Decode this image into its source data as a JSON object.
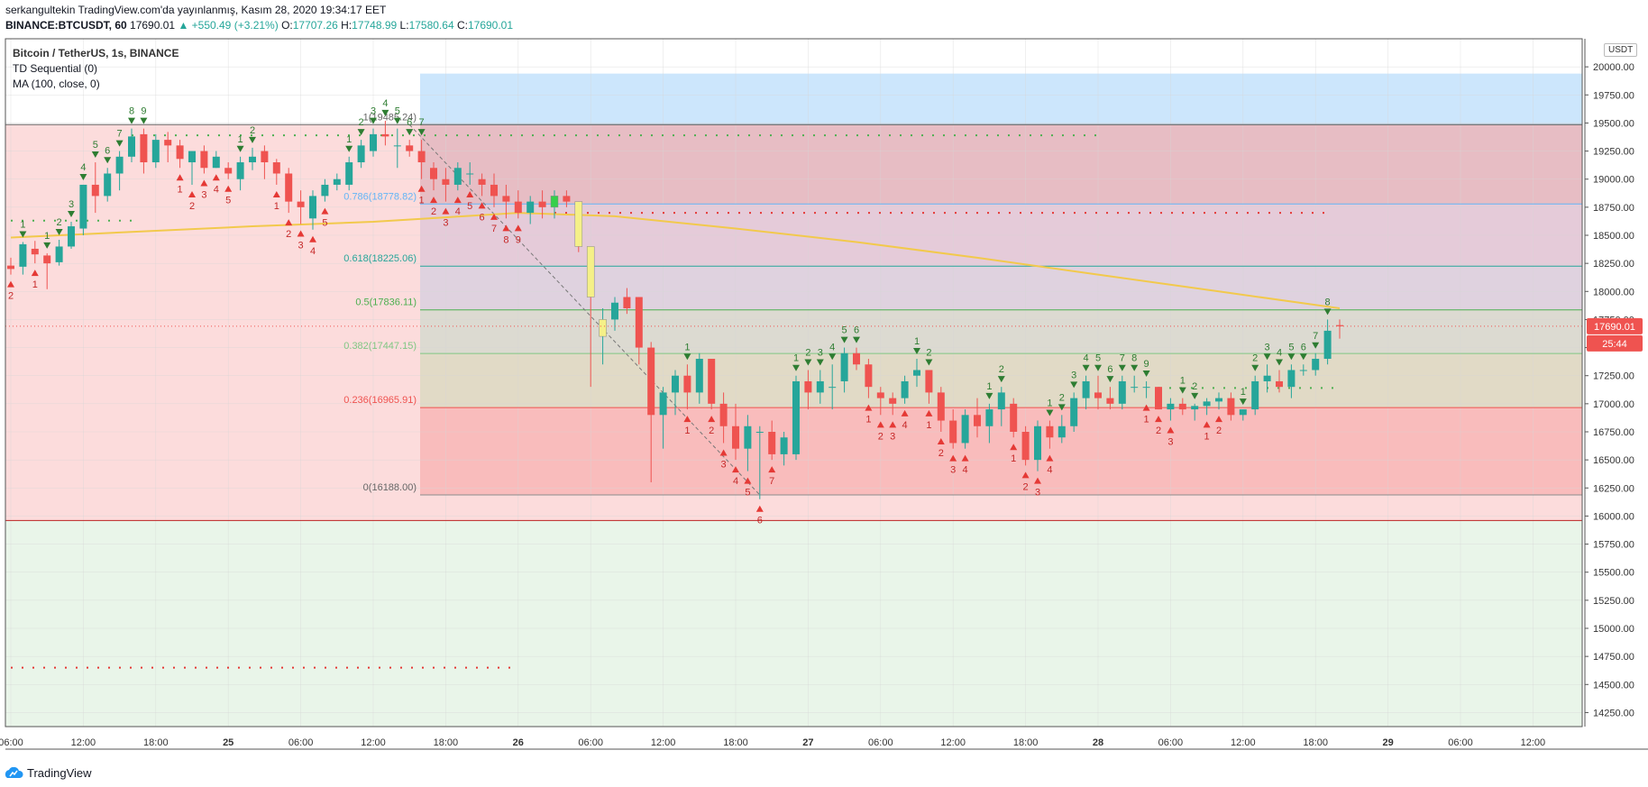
{
  "header": {
    "line1": "serkangultekin TradingView.com'da yayınlanmış, Kasım 28, 2020 19:34:17 EET",
    "symbol": "BINANCE:BTCUSDT, 60",
    "last": "17690.01",
    "change": "▲ +550.49 (+3.21%)",
    "open_label": "O:",
    "open": "17707.26",
    "high_label": "H:",
    "high": "17748.99",
    "low_label": "L:",
    "low": "17580.64",
    "close_label": "C:",
    "close": "17690.01"
  },
  "legend": {
    "title": "Bitcoin / TetherUS, 1s, BINANCE",
    "td": "TD Sequential (0)",
    "ma": "MA (100, close, 0)"
  },
  "currency_button": "USDT",
  "footer": {
    "brand": "TradingView"
  },
  "colors": {
    "up": "#26a69a",
    "down": "#ef5350",
    "ma": "#f2c94c",
    "band_blue": "#bbdefb",
    "zone_red": "#fcdcdc",
    "zone_green": "#e9f5e9",
    "price_tag": "#ef5350",
    "fib_red": "#ef5350"
  },
  "chart_data": {
    "type": "candlestick",
    "title": "Bitcoin / TetherUS, 1s, BINANCE",
    "ylim": [
      14125,
      20250
    ],
    "y_ticks": [
      14250,
      14500,
      14750,
      15000,
      15250,
      15500,
      15750,
      16000,
      16250,
      16500,
      16750,
      17000,
      17250,
      17500,
      17750,
      18000,
      18250,
      18500,
      18750,
      19000,
      19250,
      19500,
      19750,
      20000
    ],
    "y_tick_labels": [
      "14250.00",
      "14500.00",
      "14750.00",
      "15000.00",
      "15250.00",
      "15500.00",
      "15750.00",
      "16000.00",
      "16250.00",
      "16500.00",
      "16750.00",
      "17000.00",
      "17250.00",
      "17500.00",
      "17750.00",
      "18000.00",
      "18250.00",
      "18500.00",
      "18750.00",
      "19000.00",
      "19250.00",
      "19500.00",
      "19750.00",
      "20000.00"
    ],
    "x_ticks": [
      {
        "i": 0,
        "label": "06:00"
      },
      {
        "i": 6,
        "label": "12:00"
      },
      {
        "i": 12,
        "label": "18:00"
      },
      {
        "i": 18,
        "label": "25"
      },
      {
        "i": 24,
        "label": "06:00"
      },
      {
        "i": 30,
        "label": "12:00"
      },
      {
        "i": 36,
        "label": "18:00"
      },
      {
        "i": 42,
        "label": "26"
      },
      {
        "i": 48,
        "label": "06:00"
      },
      {
        "i": 54,
        "label": "12:00"
      },
      {
        "i": 60,
        "label": "18:00"
      },
      {
        "i": 66,
        "label": "27"
      },
      {
        "i": 72,
        "label": "06:00"
      },
      {
        "i": 78,
        "label": "12:00"
      },
      {
        "i": 84,
        "label": "18:00"
      },
      {
        "i": 90,
        "label": "28"
      },
      {
        "i": 96,
        "label": "06:00"
      },
      {
        "i": 102,
        "label": "12:00"
      },
      {
        "i": 108,
        "label": "18:00"
      },
      {
        "i": 114,
        "label": "29"
      },
      {
        "i": 120,
        "label": "06:00"
      },
      {
        "i": 126,
        "label": "12:00"
      }
    ],
    "candles": [
      [
        18230,
        18300,
        18150,
        18200
      ],
      [
        18220,
        18440,
        18150,
        18420
      ],
      [
        18380,
        18450,
        18250,
        18330
      ],
      [
        18320,
        18340,
        18020,
        18250
      ],
      [
        18260,
        18460,
        18230,
        18400
      ],
      [
        18400,
        18620,
        18380,
        18580
      ],
      [
        18560,
        18950,
        18500,
        18950
      ],
      [
        18950,
        19150,
        18700,
        18850
      ],
      [
        18850,
        19100,
        18800,
        19050
      ],
      [
        19050,
        19250,
        18900,
        19200
      ],
      [
        19200,
        19450,
        19150,
        19380
      ],
      [
        19400,
        19450,
        19050,
        19150
      ],
      [
        19150,
        19400,
        19100,
        19350
      ],
      [
        19350,
        19420,
        19150,
        19300
      ],
      [
        19300,
        19350,
        19100,
        19180
      ],
      [
        19150,
        19220,
        18950,
        19250
      ],
      [
        19250,
        19300,
        19050,
        19100
      ],
      [
        19100,
        19250,
        19100,
        19200
      ],
      [
        19100,
        19150,
        19000,
        19050
      ],
      [
        19000,
        19200,
        18900,
        19150
      ],
      [
        19150,
        19280,
        19080,
        19200
      ],
      [
        19250,
        19300,
        19000,
        19150
      ],
      [
        19150,
        19180,
        18950,
        19050
      ],
      [
        19050,
        19100,
        18700,
        18800
      ],
      [
        18800,
        18900,
        18600,
        18750
      ],
      [
        18650,
        18900,
        18550,
        18850
      ],
      [
        18850,
        19000,
        18800,
        18950
      ],
      [
        18950,
        19050,
        18900,
        19000
      ],
      [
        18950,
        19200,
        18900,
        19150
      ],
      [
        19150,
        19350,
        19100,
        19300
      ],
      [
        19250,
        19450,
        19200,
        19400
      ],
      [
        19400,
        19520,
        19300,
        19380
      ],
      [
        19300,
        19450,
        19100,
        19300
      ],
      [
        19300,
        19350,
        19200,
        19250
      ],
      [
        19250,
        19350,
        19000,
        19150
      ],
      [
        19100,
        19150,
        18900,
        19000
      ],
      [
        19000,
        19100,
        18800,
        18950
      ],
      [
        18950,
        19150,
        18900,
        19100
      ],
      [
        19050,
        19150,
        18950,
        19050
      ],
      [
        19000,
        19050,
        18850,
        18950
      ],
      [
        18950,
        19050,
        18750,
        18850
      ],
      [
        18850,
        18950,
        18650,
        18800
      ],
      [
        18800,
        18900,
        18650,
        18700
      ],
      [
        18700,
        18850,
        18600,
        18800
      ],
      [
        18800,
        18900,
        18650,
        18750
      ],
      [
        18750,
        18900,
        18650,
        18850
      ],
      [
        18850,
        18900,
        18750,
        18800
      ],
      [
        18800,
        18800,
        18350,
        18400
      ],
      [
        18400,
        18400,
        17150,
        17950
      ],
      [
        17600,
        17850,
        17350,
        17750
      ],
      [
        17750,
        17950,
        17650,
        17900
      ],
      [
        17950,
        18030,
        17800,
        17850
      ],
      [
        17950,
        17950,
        17350,
        17500
      ],
      [
        17500,
        17550,
        16300,
        16900
      ],
      [
        16900,
        17150,
        16600,
        17100
      ],
      [
        17100,
        17300,
        16900,
        17250
      ],
      [
        17250,
        17350,
        16950,
        17100
      ],
      [
        17100,
        17450,
        17000,
        17400
      ],
      [
        17400,
        17400,
        16950,
        17000
      ],
      [
        17000,
        17100,
        16650,
        16800
      ],
      [
        16800,
        17000,
        16500,
        16600
      ],
      [
        16600,
        16900,
        16400,
        16800
      ],
      [
        16750,
        16800,
        16150,
        16750
      ],
      [
        16750,
        16850,
        16500,
        16550
      ],
      [
        16550,
        16750,
        16450,
        16700
      ],
      [
        16550,
        17250,
        16500,
        17200
      ],
      [
        17200,
        17300,
        16950,
        17100
      ],
      [
        17100,
        17300,
        17000,
        17200
      ],
      [
        17150,
        17350,
        16950,
        17150
      ],
      [
        17200,
        17500,
        17100,
        17450
      ],
      [
        17450,
        17500,
        17300,
        17350
      ],
      [
        17350,
        17400,
        17050,
        17150
      ],
      [
        17100,
        17150,
        16900,
        17050
      ],
      [
        17050,
        17100,
        16900,
        17000
      ],
      [
        17050,
        17250,
        17000,
        17200
      ],
      [
        17250,
        17400,
        17150,
        17300
      ],
      [
        17300,
        17300,
        17000,
        17100
      ],
      [
        17100,
        17150,
        16750,
        16850
      ],
      [
        16850,
        16950,
        16600,
        16650
      ],
      [
        16650,
        16950,
        16600,
        16900
      ],
      [
        16900,
        17050,
        16700,
        16800
      ],
      [
        16800,
        17000,
        16650,
        16950
      ],
      [
        16950,
        17150,
        16800,
        17100
      ],
      [
        17000,
        17050,
        16700,
        16750
      ],
      [
        16750,
        16800,
        16450,
        16500
      ],
      [
        16500,
        16850,
        16400,
        16800
      ],
      [
        16800,
        16850,
        16600,
        16700
      ],
      [
        16700,
        16900,
        16650,
        16800
      ],
      [
        16800,
        17100,
        16750,
        17050
      ],
      [
        17050,
        17250,
        16950,
        17200
      ],
      [
        17100,
        17250,
        16950,
        17050
      ],
      [
        17050,
        17150,
        16950,
        17000
      ],
      [
        17000,
        17250,
        16950,
        17200
      ],
      [
        17150,
        17250,
        17100,
        17150
      ],
      [
        17150,
        17200,
        17050,
        17150
      ],
      [
        17150,
        17150,
        16950,
        16950
      ],
      [
        16950,
        17050,
        16850,
        17000
      ],
      [
        17000,
        17050,
        16900,
        16950
      ],
      [
        16950,
        17000,
        16850,
        16980
      ],
      [
        16980,
        17050,
        16900,
        17020
      ],
      [
        17020,
        17100,
        16950,
        17050
      ],
      [
        17050,
        17100,
        16850,
        16900
      ],
      [
        16900,
        16950,
        16850,
        16950
      ],
      [
        16950,
        17250,
        16900,
        17200
      ],
      [
        17200,
        17350,
        17100,
        17250
      ],
      [
        17200,
        17300,
        17100,
        17150
      ],
      [
        17150,
        17350,
        17050,
        17300
      ],
      [
        17300,
        17350,
        17250,
        17300
      ],
      [
        17300,
        17450,
        17250,
        17400
      ],
      [
        17400,
        17750,
        17350,
        17650
      ],
      [
        17700,
        17750,
        17580,
        17690
      ]
    ],
    "candle_overrides": {
      "45": "#35d04a",
      "47": "#f5f088",
      "48": "#f5f088",
      "49": "#f5f088"
    },
    "ma100": [
      [
        0,
        18480
      ],
      [
        10,
        18530
      ],
      [
        20,
        18580
      ],
      [
        30,
        18620
      ],
      [
        36,
        18660
      ],
      [
        42,
        18700
      ],
      [
        50,
        18670
      ],
      [
        60,
        18560
      ],
      [
        70,
        18440
      ],
      [
        80,
        18300
      ],
      [
        90,
        18150
      ],
      [
        100,
        18000
      ],
      [
        108,
        17880
      ],
      [
        110,
        17850
      ]
    ],
    "fib_levels": [
      {
        "level": "1",
        "price": 19485.24,
        "label": "1(19485.24)"
      },
      {
        "level": "0.786",
        "price": 18778.82,
        "label": "0.786(18778.82)"
      },
      {
        "level": "0.618",
        "price": 18225.06,
        "label": "0.618(18225.06)"
      },
      {
        "level": "0.5",
        "price": 17836.11,
        "label": "0.5(17836.11)"
      },
      {
        "level": "0.382",
        "price": 17447.15,
        "label": "0.382(17447.15)"
      },
      {
        "level": "0.236",
        "price": 16965.91,
        "label": "0.236(16965.91)"
      },
      {
        "level": "0",
        "price": 16188.0,
        "label": "0(16188.00)"
      }
    ],
    "zones": [
      {
        "from": 19485,
        "to": 19940,
        "color": "blue"
      },
      {
        "from": 15960,
        "to": 19485,
        "color": "red"
      },
      {
        "from": 14125,
        "to": 15960,
        "color": "green"
      }
    ],
    "dotted_levels": [
      {
        "price": 19390,
        "i0": 10,
        "i1": 90,
        "color": "green"
      },
      {
        "price": 18630,
        "i0": 0,
        "i1": 10,
        "color": "green"
      },
      {
        "price": 18700,
        "i0": 45,
        "i1": 109,
        "color": "red"
      },
      {
        "price": 14650,
        "i0": 0,
        "i1": 42,
        "color": "red"
      },
      {
        "price": 17140,
        "i0": 95,
        "i1": 110,
        "color": "green"
      }
    ],
    "td_buy": [
      [
        0,
        "2"
      ],
      [
        2,
        "1"
      ],
      [
        14,
        "1"
      ],
      [
        15,
        "2"
      ],
      [
        16,
        "3"
      ],
      [
        17,
        "4"
      ],
      [
        18,
        "5"
      ],
      [
        22,
        "1"
      ],
      [
        23,
        "2"
      ],
      [
        24,
        "3"
      ],
      [
        25,
        "4"
      ],
      [
        26,
        "5"
      ],
      [
        34,
        "1"
      ],
      [
        35,
        "2"
      ],
      [
        36,
        "3"
      ],
      [
        37,
        "4"
      ],
      [
        38,
        "5"
      ],
      [
        39,
        "6"
      ],
      [
        40,
        "7"
      ],
      [
        41,
        "8"
      ],
      [
        42,
        "9"
      ],
      [
        56,
        "1"
      ],
      [
        58,
        "2"
      ],
      [
        59,
        "3"
      ],
      [
        60,
        "4"
      ],
      [
        61,
        "5"
      ],
      [
        62,
        "6"
      ],
      [
        63,
        "7"
      ],
      [
        71,
        "1"
      ],
      [
        72,
        "2"
      ],
      [
        73,
        "3"
      ],
      [
        74,
        "4"
      ],
      [
        76,
        "1"
      ],
      [
        77,
        "2"
      ],
      [
        78,
        "3"
      ],
      [
        79,
        "4"
      ],
      [
        83,
        "1"
      ],
      [
        84,
        "2"
      ],
      [
        85,
        "3"
      ],
      [
        86,
        "4"
      ],
      [
        94,
        "1"
      ],
      [
        95,
        "2"
      ],
      [
        96,
        "3"
      ],
      [
        99,
        "1"
      ],
      [
        100,
        "2"
      ]
    ],
    "td_sell": [
      [
        1,
        "1"
      ],
      [
        3,
        "1"
      ],
      [
        4,
        "2"
      ],
      [
        5,
        "3"
      ],
      [
        6,
        "4"
      ],
      [
        7,
        "5"
      ],
      [
        8,
        "6"
      ],
      [
        9,
        "7"
      ],
      [
        10,
        "8"
      ],
      [
        11,
        "9"
      ],
      [
        19,
        "1"
      ],
      [
        20,
        "2"
      ],
      [
        28,
        "1"
      ],
      [
        29,
        "2"
      ],
      [
        30,
        "3"
      ],
      [
        31,
        "4"
      ],
      [
        32,
        "5"
      ],
      [
        33,
        "6"
      ],
      [
        34,
        "7"
      ],
      [
        56,
        "1"
      ],
      [
        65,
        "1"
      ],
      [
        66,
        "2"
      ],
      [
        67,
        "3"
      ],
      [
        68,
        "4"
      ],
      [
        69,
        "5"
      ],
      [
        70,
        "6"
      ],
      [
        75,
        "1"
      ],
      [
        76,
        "2"
      ],
      [
        81,
        "1"
      ],
      [
        82,
        "2"
      ],
      [
        86,
        "1"
      ],
      [
        87,
        "2"
      ],
      [
        88,
        "3"
      ],
      [
        89,
        "4"
      ],
      [
        90,
        "5"
      ],
      [
        91,
        "6"
      ],
      [
        92,
        "7"
      ],
      [
        93,
        "8"
      ],
      [
        94,
        "9"
      ],
      [
        97,
        "1"
      ],
      [
        98,
        "2"
      ],
      [
        102,
        "1"
      ],
      [
        103,
        "2"
      ],
      [
        104,
        "3"
      ],
      [
        105,
        "4"
      ],
      [
        106,
        "5"
      ],
      [
        107,
        "6"
      ],
      [
        108,
        "7"
      ],
      [
        109,
        "8"
      ]
    ],
    "diagonal": [
      [
        33,
        19485
      ],
      [
        62,
        16188
      ]
    ],
    "price_tag": "17690.01",
    "countdown": "25:44",
    "last_price": 17690.01
  }
}
